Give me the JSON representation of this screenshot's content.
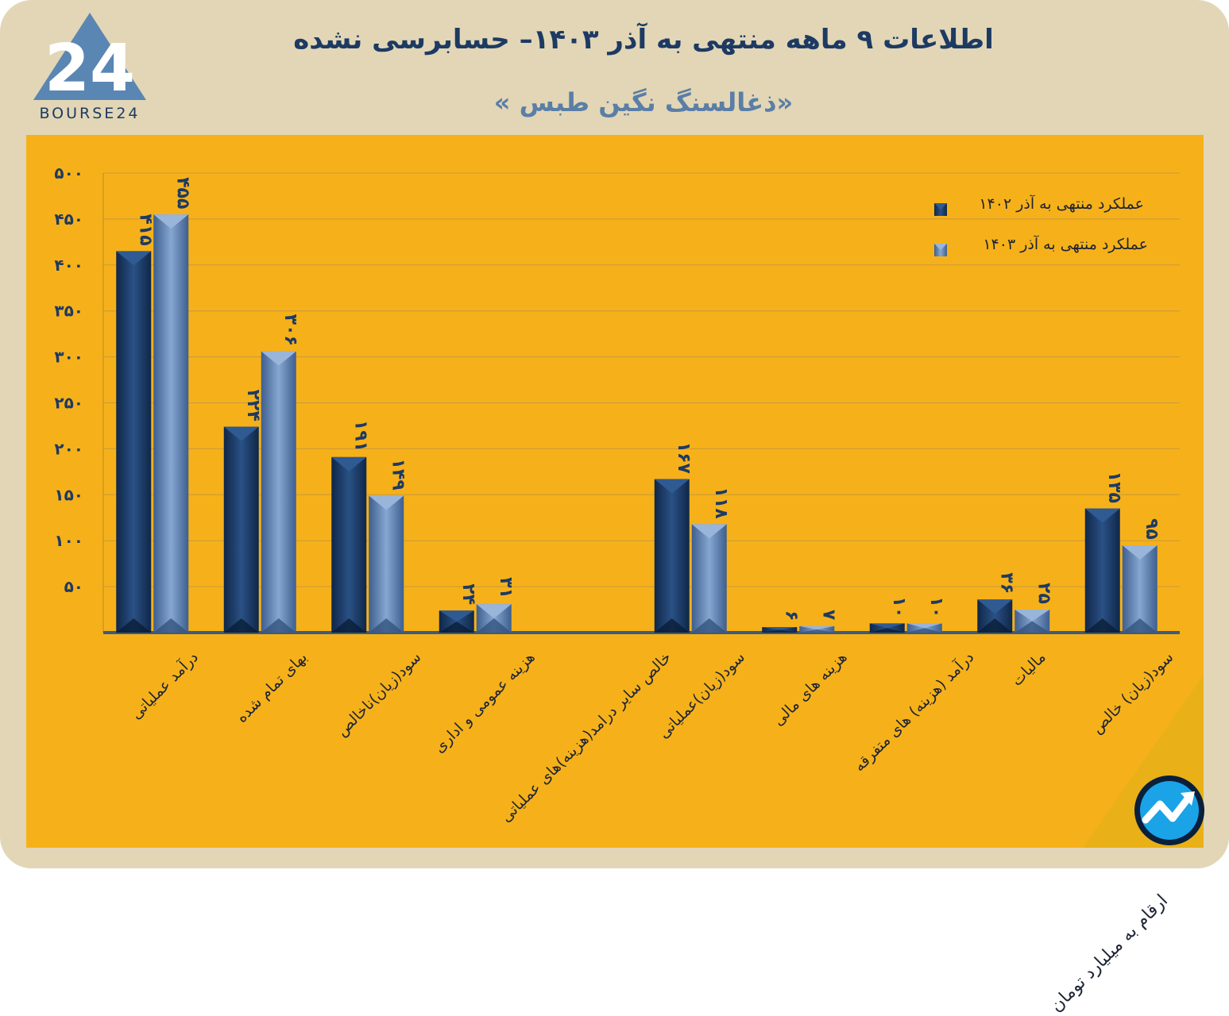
{
  "header": {
    "title": "اطلاعات ۹ ماهه منتهی به آذر ۱۴۰۳– حسابرسی نشده",
    "subtitle": "«ذغالسنگ نگین طبس »",
    "logo_text": "BOURSE24"
  },
  "note": "ارقام به میلیارد تومان",
  "colors": {
    "background": "#e2d6b6",
    "panel": "#f6b11a",
    "series_1402": "#1c3d66",
    "series_1403": "#5f82b1",
    "title": "#1d3a63"
  },
  "chart_data": {
    "type": "bar",
    "orientation": "vertical",
    "categories": [
      "درآمد عملیاتی",
      "بهای تمام شده",
      "سود(زیان)ناخالص",
      "هزینه عمومی و اداری",
      "خالص سایر درامد(هزینه)های عملیاتی",
      "سود(زیان)عملیاتی",
      "هزینه های مالی",
      "درآمد (هزینه) های متفرقه",
      "مالیات",
      "سود(زیان) خالص"
    ],
    "series": [
      {
        "name": "عملکرد منتهی به آذر ۱۴۰۲",
        "values": [
          415,
          224,
          191,
          24,
          null,
          167,
          6,
          10,
          36,
          135
        ],
        "labels": [
          "۴۱۵",
          "۲۲۴",
          "۱۹۱",
          "۲۴",
          "",
          "۱۶۷",
          "۶",
          "۱۰",
          "۳۶",
          "۱۳۵"
        ]
      },
      {
        "name": "عملکرد منتهی به آذر ۱۴۰۳",
        "values": [
          455,
          306,
          149,
          31,
          null,
          118,
          7,
          10,
          25,
          95
        ],
        "labels": [
          "۴۵۵",
          "۳۰۶",
          "۱۴۹",
          "۳۱",
          "",
          "۱۱۸",
          "۷",
          "۱۰",
          "۲۵",
          "۹۵"
        ]
      }
    ],
    "yticks": [
      50,
      100,
      150,
      200,
      250,
      300,
      350,
      400,
      450,
      500
    ],
    "ytick_labels": [
      "۵۰",
      "۱۰۰",
      "۱۵۰",
      "۲۰۰",
      "۲۵۰",
      "۳۰۰",
      "۳۵۰",
      "۴۰۰",
      "۴۵۰",
      "۵۰۰"
    ],
    "ylim": [
      0,
      500
    ],
    "grid": true,
    "legend_position": "top-right"
  }
}
